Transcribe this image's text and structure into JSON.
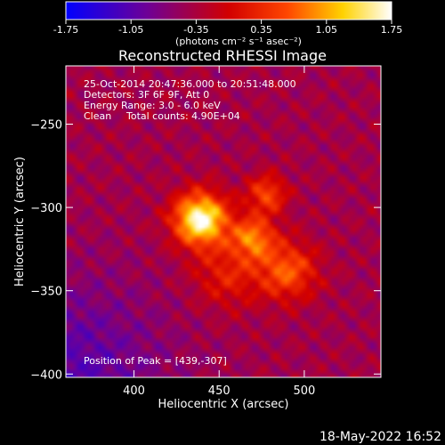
{
  "chart_data": {
    "type": "heatmap",
    "title": "Reconstructed RHESSI Image",
    "xlabel": "Heliocentric X (arcsec)",
    "ylabel": "Heliocentric Y (arcsec)",
    "xlim": [
      360,
      545
    ],
    "ylim": [
      -402,
      -215
    ],
    "xticks": [
      400,
      450,
      500
    ],
    "yticks": [
      -250,
      -300,
      -350,
      -400
    ],
    "colorbar": {
      "range": [
        -1.75,
        1.75
      ],
      "ticks": [
        "-1.75",
        "-1.05",
        "-0.35",
        "0.35",
        "1.05",
        "1.75"
      ],
      "units": "(photons cm⁻² s⁻¹ asec⁻²)",
      "colormap": "blue-purple-red-yellow-white"
    },
    "annotations": {
      "time_range": "25-Oct-2014 20:47:36.000 to 20:51:48.000",
      "detectors": "Detectors: 3F 6F 9F, Att 0",
      "energy_range": "Energy Range: 3.0 - 6.0 keV",
      "method": "Clean",
      "total_counts": "Total counts: 4.90E+04",
      "peak_position": "Position of Peak = [439,-307]"
    },
    "peak": [
      439,
      -307
    ],
    "sources": [
      {
        "x": 439,
        "y": -307,
        "sigma": 11,
        "amp": 1.0
      },
      {
        "x": 470,
        "y": -318,
        "sigma": 9,
        "amp": 0.55
      },
      {
        "x": 478,
        "y": -292,
        "sigma": 8,
        "amp": 0.45
      },
      {
        "x": 490,
        "y": -338,
        "sigma": 12,
        "amp": 0.5
      },
      {
        "x": 455,
        "y": -340,
        "sigma": 14,
        "amp": 0.3
      }
    ],
    "background_level": 0.38,
    "grid": false
  },
  "footer": {
    "date": "18-May-2022 16:52"
  }
}
